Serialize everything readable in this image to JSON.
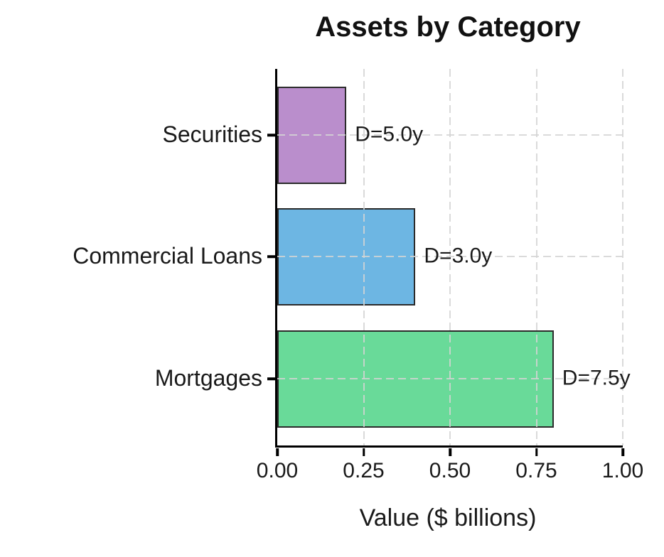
{
  "chart_data": {
    "type": "bar",
    "orientation": "horizontal",
    "title": "Assets by Category",
    "xlabel": "Value ($ billions)",
    "ylabel": "",
    "categories": [
      "Securities",
      "Commercial Loans",
      "Mortgages"
    ],
    "values": [
      0.2,
      0.4,
      0.8
    ],
    "bar_labels": [
      "D=5.0y",
      "D=3.0y",
      "D=7.5y"
    ],
    "bar_colors": [
      "#BA8ECC",
      "#6DB6E3",
      "#69DA99"
    ],
    "bar_edge_color": "#2B2B2B",
    "x_ticks": [
      "0.00",
      "0.25",
      "0.50",
      "0.75",
      "1.00"
    ],
    "x_tick_values": [
      0,
      0.25,
      0.5,
      0.75,
      1.0
    ],
    "xlim": [
      0,
      1.0
    ],
    "grid": true,
    "grid_style": "dashed",
    "grid_color": "#D4D4D4",
    "axis_color": "#000000",
    "text_color": "#1A1A1A",
    "legend": "none"
  }
}
